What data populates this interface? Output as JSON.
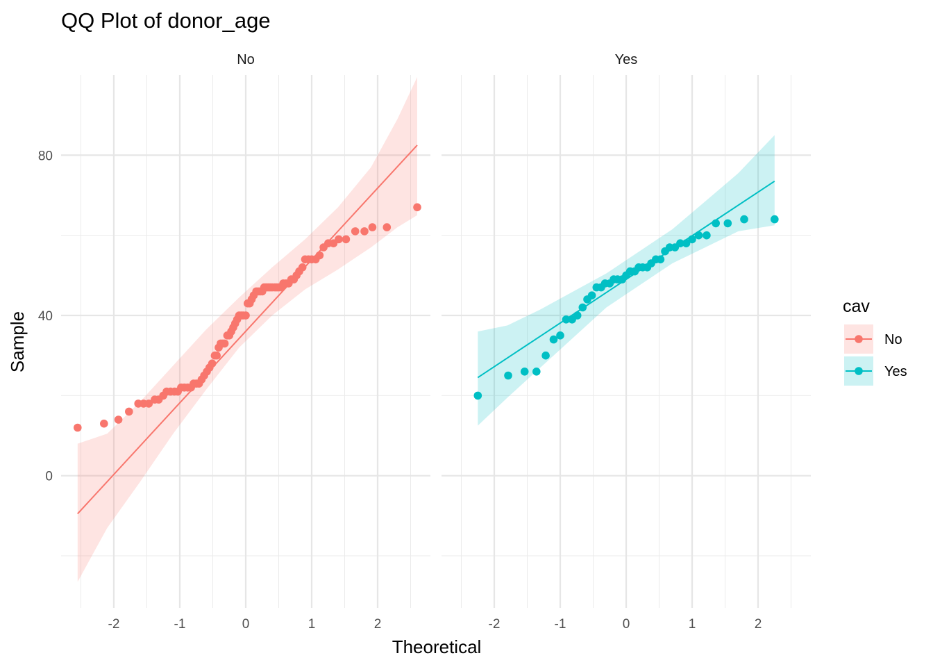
{
  "chart_data": {
    "type": "scatter",
    "title": "QQ Plot of donor_age",
    "xlabel": "Theoretical",
    "ylabel": "Sample",
    "xlim": [
      -2.8,
      2.8
    ],
    "ylim": [
      -33,
      100
    ],
    "x_ticks": [
      "-2",
      "-1",
      "0",
      "1",
      "2"
    ],
    "y_ticks": [
      "0",
      "40",
      "80"
    ],
    "grid": true,
    "legend": {
      "title": "cav",
      "position": "right"
    },
    "series": [
      {
        "name": "No",
        "color": "#F8766D",
        "points": [
          [
            -2.55,
            12
          ],
          [
            -2.15,
            13
          ],
          [
            -1.93,
            14
          ],
          [
            -1.77,
            16
          ],
          [
            -1.63,
            18
          ],
          [
            -1.55,
            18
          ],
          [
            -1.47,
            18
          ],
          [
            -1.38,
            19
          ],
          [
            -1.32,
            19
          ],
          [
            -1.25,
            20
          ],
          [
            -1.2,
            21
          ],
          [
            -1.14,
            21
          ],
          [
            -1.08,
            21
          ],
          [
            -1.03,
            21
          ],
          [
            -0.98,
            22
          ],
          [
            -0.93,
            22
          ],
          [
            -0.88,
            22
          ],
          [
            -0.83,
            22
          ],
          [
            -0.79,
            23
          ],
          [
            -0.75,
            23
          ],
          [
            -0.71,
            23
          ],
          [
            -0.67,
            24
          ],
          [
            -0.63,
            25
          ],
          [
            -0.59,
            26
          ],
          [
            -0.55,
            27
          ],
          [
            -0.51,
            28
          ],
          [
            -0.47,
            30
          ],
          [
            -0.44,
            30
          ],
          [
            -0.41,
            32
          ],
          [
            -0.38,
            33
          ],
          [
            -0.35,
            33
          ],
          [
            -0.32,
            33
          ],
          [
            -0.28,
            35
          ],
          [
            -0.25,
            35
          ],
          [
            -0.22,
            36
          ],
          [
            -0.19,
            37
          ],
          [
            -0.16,
            38
          ],
          [
            -0.13,
            39
          ],
          [
            -0.1,
            40
          ],
          [
            -0.07,
            40
          ],
          [
            -0.04,
            40
          ],
          [
            0.0,
            40
          ],
          [
            0.03,
            43
          ],
          [
            0.06,
            43
          ],
          [
            0.09,
            44
          ],
          [
            0.12,
            45
          ],
          [
            0.16,
            46
          ],
          [
            0.19,
            46
          ],
          [
            0.22,
            46
          ],
          [
            0.25,
            46
          ],
          [
            0.28,
            47
          ],
          [
            0.31,
            47
          ],
          [
            0.34,
            47
          ],
          [
            0.37,
            47
          ],
          [
            0.4,
            47
          ],
          [
            0.44,
            47
          ],
          [
            0.47,
            47
          ],
          [
            0.5,
            47
          ],
          [
            0.54,
            47
          ],
          [
            0.57,
            48
          ],
          [
            0.61,
            48
          ],
          [
            0.65,
            48
          ],
          [
            0.69,
            49
          ],
          [
            0.73,
            49
          ],
          [
            0.77,
            50
          ],
          [
            0.81,
            51
          ],
          [
            0.86,
            52
          ],
          [
            0.9,
            54
          ],
          [
            0.95,
            54
          ],
          [
            1.0,
            54
          ],
          [
            1.06,
            54
          ],
          [
            1.12,
            55
          ],
          [
            1.18,
            57
          ],
          [
            1.25,
            58
          ],
          [
            1.33,
            58
          ],
          [
            1.41,
            59
          ],
          [
            1.52,
            59
          ],
          [
            1.66,
            61
          ],
          [
            1.8,
            61
          ],
          [
            1.92,
            62
          ],
          [
            2.14,
            62
          ],
          [
            2.6,
            67
          ]
        ],
        "fit_line": [
          [
            -2.55,
            -9.5
          ],
          [
            2.6,
            82.5
          ]
        ],
        "band_x": [
          -2.55,
          -2.1,
          -1.6,
          -1.1,
          -0.6,
          -0.1,
          0.4,
          0.9,
          1.4,
          1.9,
          2.3,
          2.6
        ],
        "band_lower": [
          -26.5,
          -13,
          -1.5,
          10.5,
          21.5,
          32,
          40,
          46.5,
          51.5,
          57,
          62,
          65
        ],
        "band_upper": [
          8,
          10.5,
          18.5,
          27.5,
          36.5,
          44.5,
          52,
          59,
          67,
          77,
          89,
          99.5
        ]
      },
      {
        "name": "Yes",
        "color": "#00BFC4",
        "points": [
          [
            -2.25,
            20
          ],
          [
            -1.79,
            25
          ],
          [
            -1.54,
            26
          ],
          [
            -1.36,
            26
          ],
          [
            -1.22,
            30
          ],
          [
            -1.1,
            34
          ],
          [
            -1.0,
            35
          ],
          [
            -0.91,
            39
          ],
          [
            -0.82,
            39
          ],
          [
            -0.74,
            40
          ],
          [
            -0.66,
            42
          ],
          [
            -0.59,
            44
          ],
          [
            -0.52,
            45
          ],
          [
            -0.45,
            47
          ],
          [
            -0.38,
            47
          ],
          [
            -0.32,
            48
          ],
          [
            -0.25,
            48
          ],
          [
            -0.19,
            49
          ],
          [
            -0.13,
            49
          ],
          [
            -0.06,
            49
          ],
          [
            0.0,
            50
          ],
          [
            0.06,
            51
          ],
          [
            0.13,
            51
          ],
          [
            0.19,
            52
          ],
          [
            0.25,
            52
          ],
          [
            0.32,
            52
          ],
          [
            0.38,
            53
          ],
          [
            0.45,
            54
          ],
          [
            0.52,
            54
          ],
          [
            0.59,
            56
          ],
          [
            0.66,
            57
          ],
          [
            0.74,
            57
          ],
          [
            0.82,
            58
          ],
          [
            0.91,
            58
          ],
          [
            1.0,
            59
          ],
          [
            1.1,
            60
          ],
          [
            1.22,
            60
          ],
          [
            1.36,
            63
          ],
          [
            1.54,
            63
          ],
          [
            1.79,
            64
          ],
          [
            2.25,
            64
          ]
        ],
        "fit_line": [
          [
            -2.25,
            24.5
          ],
          [
            2.25,
            73.5
          ]
        ],
        "band_x": [
          -2.25,
          -1.8,
          -1.3,
          -0.8,
          -0.3,
          0.2,
          0.7,
          1.2,
          1.7,
          2.25
        ],
        "band_lower": [
          12.5,
          19.5,
          27,
          34.5,
          42,
          47.5,
          53,
          57,
          61,
          62.5
        ],
        "band_upper": [
          36,
          37.5,
          41.5,
          46,
          50.5,
          56,
          61.5,
          68.5,
          75.5,
          85
        ]
      }
    ],
    "panels": [
      {
        "label": "No",
        "series": 0
      },
      {
        "label": "Yes",
        "series": 1
      }
    ]
  }
}
